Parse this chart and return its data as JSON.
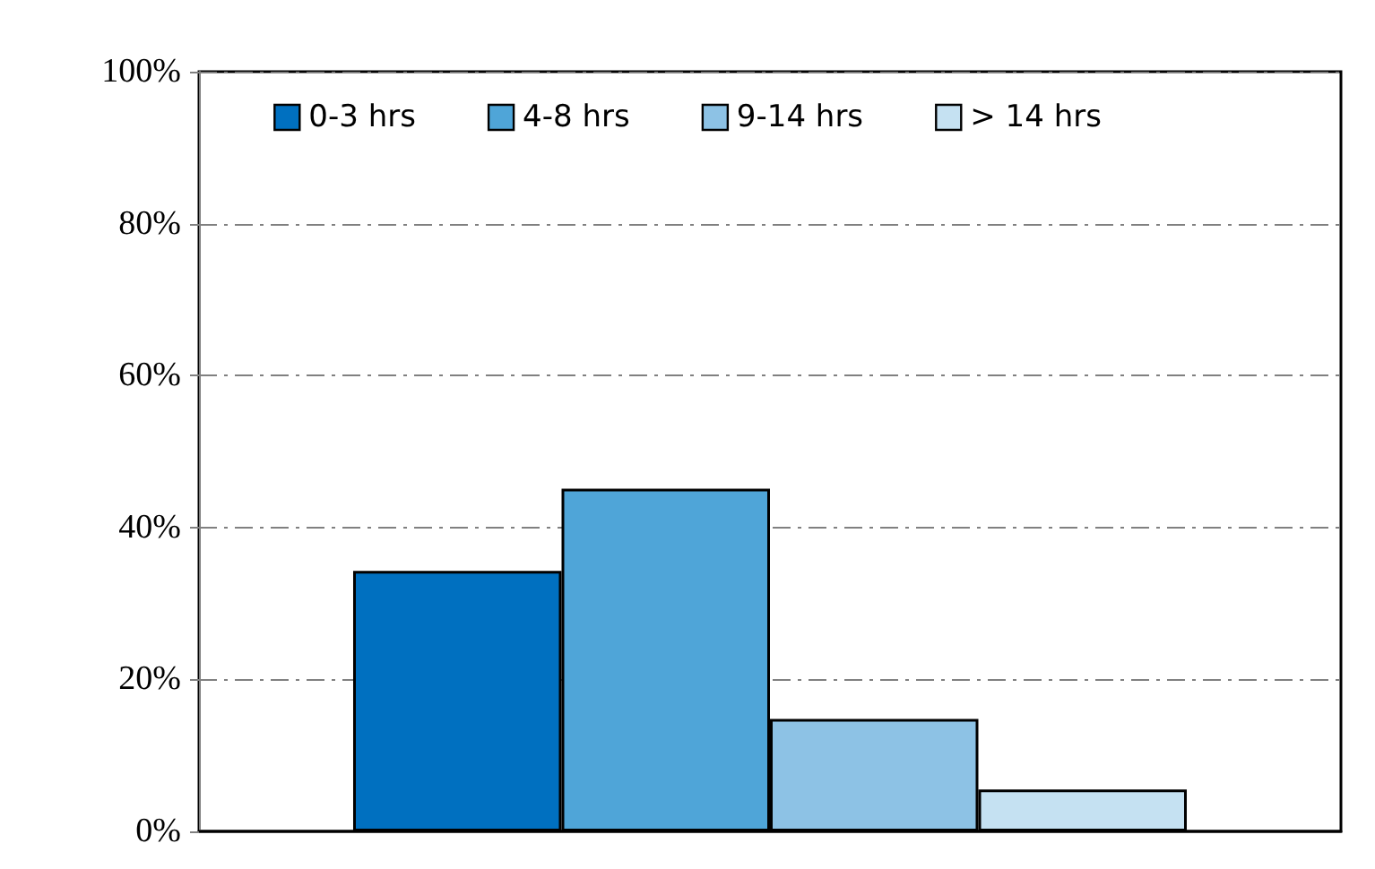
{
  "chart_data": {
    "type": "bar",
    "categories": [
      null
    ],
    "series": [
      {
        "name": "0-3 hrs",
        "color": "#0070c0",
        "values": [
          34.3
        ]
      },
      {
        "name": "4-8 hrs",
        "color": "#4fa5d8",
        "values": [
          45.1
        ]
      },
      {
        "name": "9-14 hrs",
        "color": "#8dc2e5",
        "values": [
          14.8
        ]
      },
      {
        "name": "> 14 hrs",
        "color": "#c5e1f2",
        "values": [
          5.5
        ]
      }
    ],
    "ylim": [
      0,
      100
    ],
    "yticks": [
      {
        "value": 0,
        "label": "0%"
      },
      {
        "value": 20,
        "label": "20%"
      },
      {
        "value": 40,
        "label": "40%"
      },
      {
        "value": 60,
        "label": "60%"
      },
      {
        "value": 80,
        "label": "80%"
      },
      {
        "value": 100,
        "label": "100%"
      }
    ],
    "grid": "y",
    "legend": "top"
  }
}
